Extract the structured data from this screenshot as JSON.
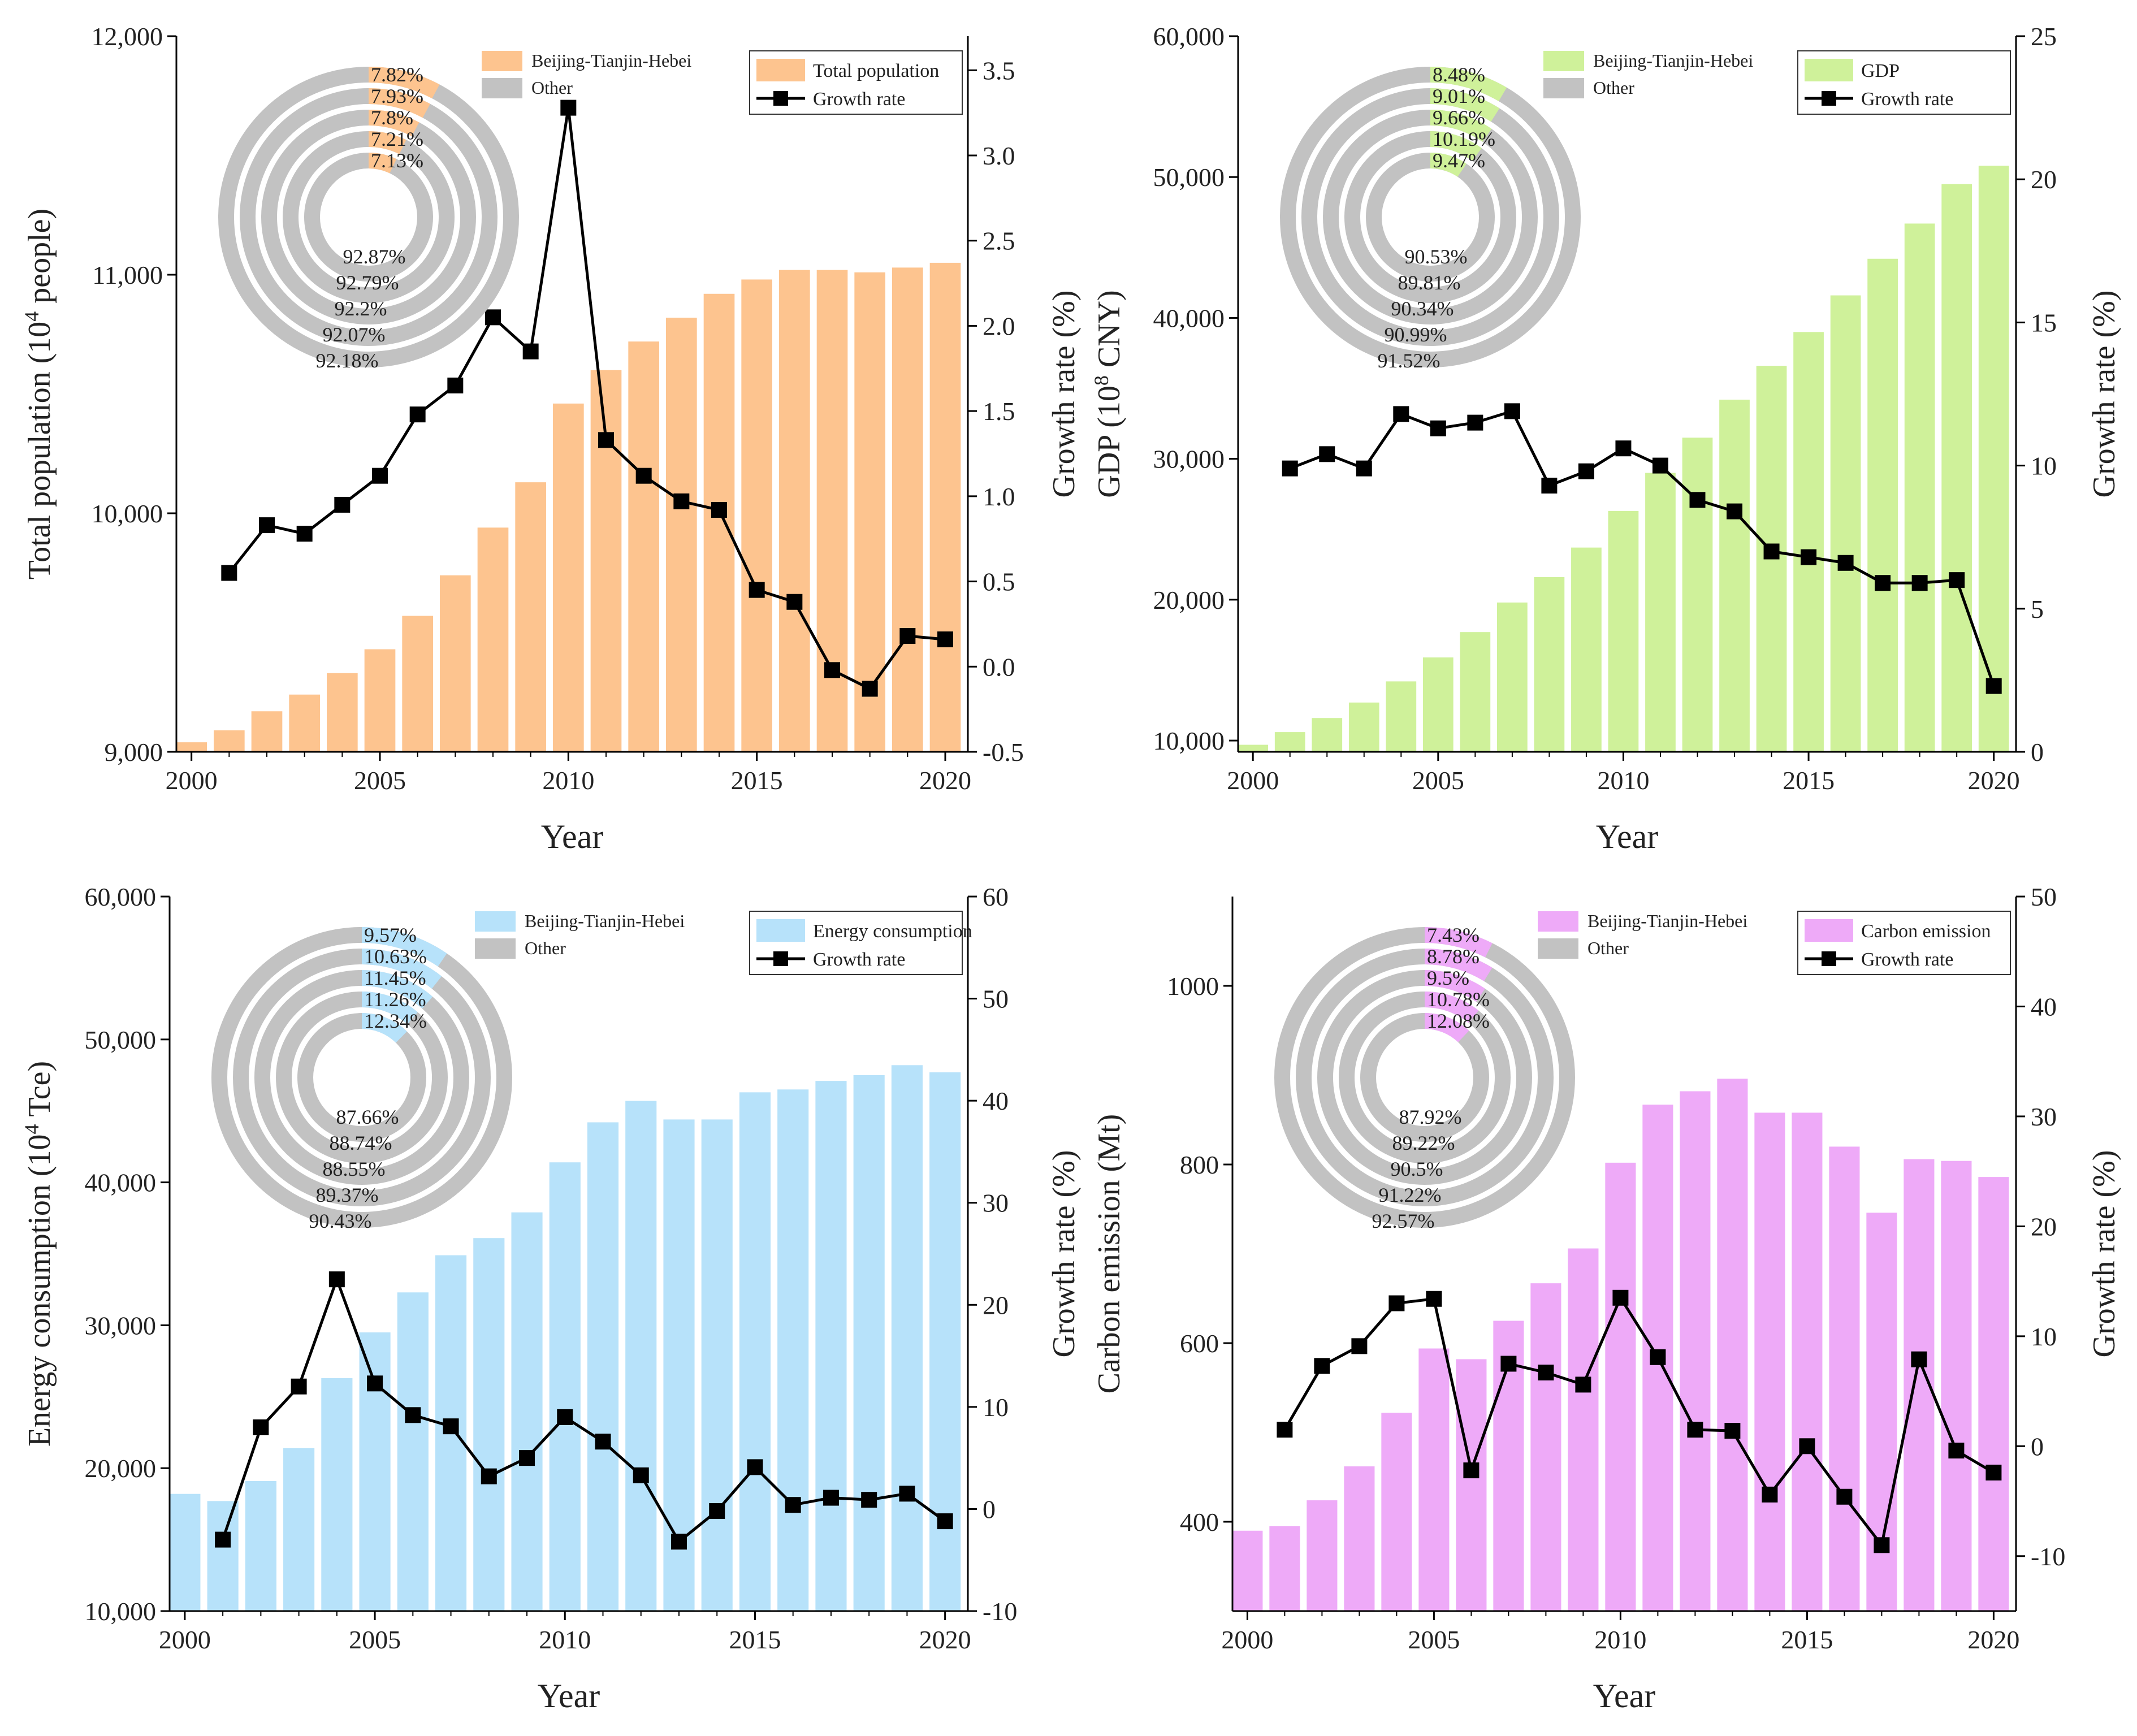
{
  "colors": {
    "population": "#fdc48f",
    "gdp": "#cff19a",
    "energy": "#b7e2fa",
    "carbon": "#eeaaf8",
    "other": "#c2c2c2",
    "line": "#000000",
    "axis": "#000000"
  },
  "chart_data": [
    {
      "type": "bar",
      "id": "population",
      "ylabel_main": "Total population (10",
      "ylabel_sup": "4",
      "ylabel_tail": " people)",
      "y2label": "Growth rate (%)",
      "xlabel": "Year",
      "x": [
        2000,
        2001,
        2002,
        2003,
        2004,
        2005,
        2006,
        2007,
        2008,
        2009,
        2010,
        2011,
        2012,
        2013,
        2014,
        2015,
        2016,
        2017,
        2018,
        2019,
        2020
      ],
      "xticks": [
        "2000",
        "2005",
        "2010",
        "2015",
        "2020"
      ],
      "ylim": [
        9000,
        12000
      ],
      "yticks": [
        "9,000",
        "10,000",
        "11,000",
        "12,000"
      ],
      "y2lim": [
        -0.5,
        3.7
      ],
      "y2ticks": [
        "-0.5",
        "0.0",
        "0.5",
        "1.0",
        "1.5",
        "2.0",
        "2.5",
        "3.0",
        "3.5"
      ],
      "series": [
        {
          "name": "Total population",
          "kind": "bar",
          "values": [
            9040,
            9090,
            9170,
            9240,
            9330,
            9430,
            9570,
            9740,
            9940,
            10130,
            10460,
            10600,
            10720,
            10820,
            10920,
            10980,
            11020,
            11020,
            11010,
            11030,
            11050
          ]
        },
        {
          "name": "Growth rate",
          "kind": "line",
          "values": [
            null,
            0.55,
            0.83,
            0.78,
            0.95,
            1.12,
            1.48,
            1.65,
            2.05,
            1.85,
            3.28,
            1.33,
            1.12,
            0.97,
            0.92,
            0.45,
            0.38,
            -0.02,
            -0.13,
            0.18,
            0.16
          ]
        }
      ],
      "legend_bar": "Total population",
      "legend_line": "Growth rate",
      "donut_legend_region": "Beijing-Tianjin-Hebei",
      "donut_legend_other": "Other",
      "donut_region_pct": [
        "7.82%",
        "7.93%",
        "7.8%",
        "7.21%",
        "7.13%"
      ],
      "donut_other_pct": [
        "92.87%",
        "92.79%",
        "92.2%",
        "92.07%",
        "92.18%"
      ]
    },
    {
      "type": "bar",
      "id": "gdp",
      "ylabel_main": "GDP (10",
      "ylabel_sup": "8",
      "ylabel_tail": " CNY)",
      "y2label": "Growth rate (%)",
      "xlabel": "Year",
      "x": [
        2000,
        2001,
        2002,
        2003,
        2004,
        2005,
        2006,
        2007,
        2008,
        2009,
        2010,
        2011,
        2012,
        2013,
        2014,
        2015,
        2016,
        2017,
        2018,
        2019,
        2020
      ],
      "xticks": [
        "2000",
        "2005",
        "2010",
        "2015",
        "2020"
      ],
      "ylim": [
        9200,
        60000
      ],
      "yticks": [
        "10,000",
        "20,000",
        "30,000",
        "40,000",
        "50,000",
        "60,000"
      ],
      "y2lim": [
        0,
        25
      ],
      "y2ticks": [
        "0",
        "5",
        "10",
        "15",
        "20",
        "25"
      ],
      "series": [
        {
          "name": "GDP",
          "kind": "bar",
          "values": [
            9700,
            10600,
            11600,
            12700,
            14200,
            15900,
            17700,
            19800,
            21600,
            23700,
            26300,
            29000,
            31500,
            34200,
            36600,
            39000,
            41600,
            44200,
            46700,
            49500,
            50800
          ]
        },
        {
          "name": "Growth rate",
          "kind": "line",
          "values": [
            null,
            9.9,
            10.4,
            9.9,
            11.8,
            11.3,
            11.5,
            11.9,
            9.3,
            9.8,
            10.6,
            10.0,
            8.8,
            8.4,
            7.0,
            6.8,
            6.6,
            5.9,
            5.9,
            6.0,
            2.3
          ]
        }
      ],
      "legend_bar": "GDP",
      "legend_line": "Growth rate",
      "donut_legend_region": "Beijing-Tianjin-Hebei",
      "donut_legend_other": "Other",
      "donut_region_pct": [
        "8.48%",
        "9.01%",
        "9.66%",
        "10.19%",
        "9.47%"
      ],
      "donut_other_pct": [
        "90.53%",
        "89.81%",
        "90.34%",
        "90.99%",
        "91.52%"
      ]
    },
    {
      "type": "bar",
      "id": "energy",
      "ylabel_main": "Energy consumption (10",
      "ylabel_sup": "4",
      "ylabel_tail": " Tce)",
      "y2label": "Growth rate (%)",
      "xlabel": "Year",
      "x": [
        2000,
        2001,
        2002,
        2003,
        2004,
        2005,
        2006,
        2007,
        2008,
        2009,
        2010,
        2011,
        2012,
        2013,
        2014,
        2015,
        2016,
        2017,
        2018,
        2019,
        2020
      ],
      "xticks": [
        "2000",
        "2005",
        "2010",
        "2015",
        "2020"
      ],
      "ylim": [
        10000,
        60000
      ],
      "yticks": [
        "10,000",
        "20,000",
        "30,000",
        "40,000",
        "50,000",
        "60,000"
      ],
      "y2lim": [
        -10,
        60
      ],
      "y2ticks": [
        "-10",
        "0",
        "10",
        "20",
        "30",
        "40",
        "50",
        "60"
      ],
      "series": [
        {
          "name": "Energy consumption",
          "kind": "bar",
          "values": [
            18200,
            17700,
            19100,
            21400,
            26300,
            29500,
            32300,
            34900,
            36100,
            37900,
            41400,
            44200,
            45700,
            44400,
            44400,
            46300,
            46500,
            47100,
            47500,
            48200,
            47700
          ]
        },
        {
          "name": "Growth rate",
          "kind": "line",
          "values": [
            null,
            -3.0,
            8.0,
            12.0,
            22.5,
            12.3,
            9.2,
            8.1,
            3.2,
            5.0,
            9.0,
            6.6,
            3.3,
            -3.2,
            -0.2,
            4.1,
            0.4,
            1.1,
            0.9,
            1.5,
            -1.2
          ]
        }
      ],
      "legend_bar": "Energy consumption",
      "legend_line": "Growth rate",
      "donut_legend_region": "Beijing-Tianjin-Hebei",
      "donut_legend_other": "Other",
      "donut_region_pct": [
        "9.57%",
        "10.63%",
        "11.45%",
        "11.26%",
        "12.34%"
      ],
      "donut_other_pct": [
        "87.66%",
        "88.74%",
        "88.55%",
        "89.37%",
        "90.43%"
      ]
    },
    {
      "type": "bar",
      "id": "carbon",
      "ylabel_main": "Carbon emission (Mt)",
      "ylabel_sup": "",
      "ylabel_tail": "",
      "y2label": "Growth rate (%)",
      "xlabel": "Year",
      "x": [
        2000,
        2001,
        2002,
        2003,
        2004,
        2005,
        2006,
        2007,
        2008,
        2009,
        2010,
        2011,
        2012,
        2013,
        2014,
        2015,
        2016,
        2017,
        2018,
        2019,
        2020
      ],
      "xticks": [
        "2000",
        "2005",
        "2010",
        "2015",
        "2020"
      ],
      "ylim": [
        300,
        1100
      ],
      "yticks": [
        "400",
        "600",
        "800",
        "1000"
      ],
      "y2lim": [
        -15,
        50
      ],
      "y2ticks": [
        "-10",
        "0",
        "10",
        "20",
        "30",
        "40",
        "50"
      ],
      "series": [
        {
          "name": "Carbon emission",
          "kind": "bar",
          "values": [
            390,
            395,
            424,
            462,
            522,
            594,
            582,
            625,
            667,
            706,
            802,
            867,
            882,
            896,
            858,
            858,
            820,
            746,
            806,
            804,
            786
          ]
        },
        {
          "name": "Growth rate",
          "kind": "line",
          "values": [
            null,
            1.5,
            7.3,
            9.1,
            13.0,
            13.4,
            -2.2,
            7.5,
            6.7,
            5.6,
            13.5,
            8.1,
            1.5,
            1.4,
            -4.4,
            0.0,
            -4.6,
            -9.0,
            7.9,
            -0.4,
            -2.4
          ]
        }
      ],
      "legend_bar": "Carbon emission",
      "legend_line": "Growth rate",
      "donut_legend_region": "Beijing-Tianjin-Hebei",
      "donut_legend_other": "Other",
      "donut_region_pct": [
        "7.43%",
        "8.78%",
        "9.5%",
        "10.78%",
        "12.08%"
      ],
      "donut_other_pct": [
        "87.92%",
        "89.22%",
        "90.5%",
        "91.22%",
        "92.57%"
      ]
    }
  ]
}
